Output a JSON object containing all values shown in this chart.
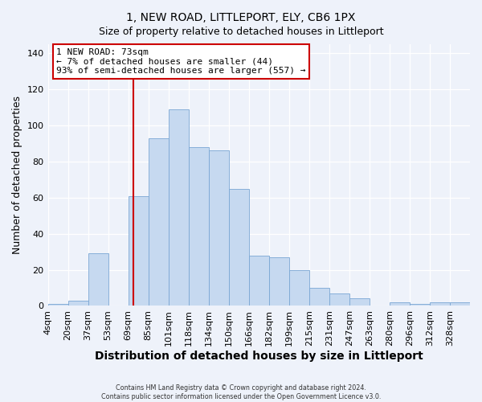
{
  "title": "1, NEW ROAD, LITTLEPORT, ELY, CB6 1PX",
  "subtitle": "Size of property relative to detached houses in Littleport",
  "xlabel": "Distribution of detached houses by size in Littleport",
  "ylabel": "Number of detached properties",
  "bar_labels": [
    "4sqm",
    "20sqm",
    "37sqm",
    "53sqm",
    "69sqm",
    "85sqm",
    "101sqm",
    "118sqm",
    "134sqm",
    "150sqm",
    "166sqm",
    "182sqm",
    "199sqm",
    "215sqm",
    "231sqm",
    "247sqm",
    "263sqm",
    "280sqm",
    "296sqm",
    "312sqm",
    "328sqm"
  ],
  "bar_values": [
    1,
    3,
    29,
    0,
    61,
    93,
    109,
    88,
    86,
    65,
    28,
    27,
    20,
    10,
    7,
    4,
    0,
    2,
    1,
    2,
    2
  ],
  "bar_color": "#c6d9f0",
  "bar_edge_color": "#7aa6d4",
  "vline_color": "#cc0000",
  "ylim": [
    0,
    145
  ],
  "yticks": [
    0,
    20,
    40,
    60,
    80,
    100,
    120,
    140
  ],
  "annotation_title": "1 NEW ROAD: 73sqm",
  "annotation_line1": "← 7% of detached houses are smaller (44)",
  "annotation_line2": "93% of semi-detached houses are larger (557) →",
  "annotation_box_facecolor": "#ffffff",
  "annotation_border_color": "#cc0000",
  "footer1": "Contains HM Land Registry data © Crown copyright and database right 2024.",
  "footer2": "Contains public sector information licensed under the Open Government Licence v3.0.",
  "background_color": "#eef2fa",
  "grid_color": "#ffffff",
  "title_fontsize": 10,
  "subtitle_fontsize": 9,
  "axis_label_fontsize": 9,
  "tick_fontsize": 8
}
